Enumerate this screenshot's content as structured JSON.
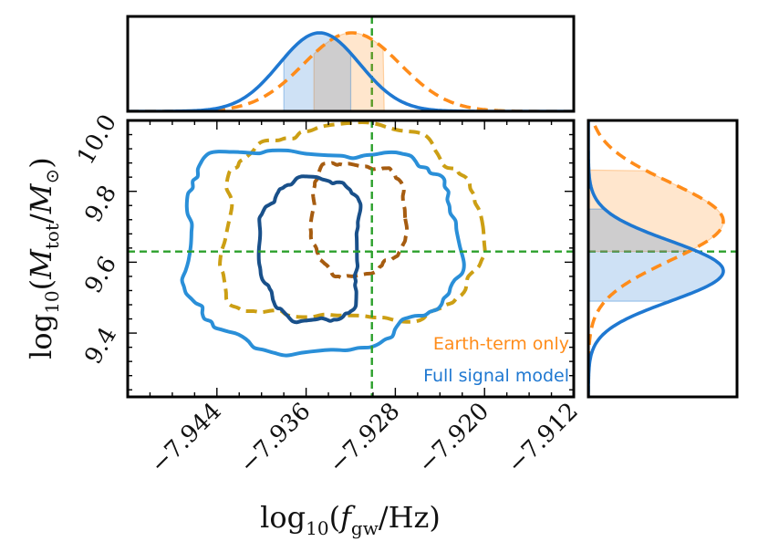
{
  "chart_data": {
    "type": "contour",
    "title": "",
    "xlabel": "log10(fgw/Hz)",
    "ylabel": "log10(Mtot/M⊙)",
    "xlim": [
      -7.952,
      -7.912
    ],
    "ylim": [
      9.22,
      10.0
    ],
    "x_ticks": [
      -7.944,
      -7.936,
      -7.928,
      -7.92,
      -7.912
    ],
    "x_tick_labels": [
      "−7.944",
      "−7.936",
      "−7.928",
      "−7.920",
      "−7.912"
    ],
    "y_ticks": [
      9.4,
      9.6,
      9.8,
      10.0
    ],
    "y_tick_labels": [
      "9.4",
      "9.6",
      "9.8",
      "10.0"
    ],
    "truth": {
      "x": -7.9301,
      "y": 9.63,
      "color": "#2ca02c"
    },
    "legend": [
      {
        "label": "Earth-term only",
        "color": "#ff8c1a"
      },
      {
        "label": "Full signal model",
        "color": "#1f78d1"
      }
    ],
    "series": [
      {
        "name": "Earth-term only",
        "line_style": "dashed",
        "contours": [
          {
            "level": "1σ",
            "color": "#a65c10",
            "center": [
              -7.9314,
              9.725
            ],
            "radius_x": 0.0042,
            "radius_y": 0.155
          },
          {
            "level": "2σ",
            "color": "#cc9f14",
            "center": [
              -7.9322,
              9.7
            ],
            "radius_x": 0.0115,
            "radius_y": 0.27
          }
        ],
        "x_marginal": {
          "mean": -7.9319,
          "sd": 0.0043,
          "ci_low": -7.9353,
          "ci_high": -7.929,
          "color": "#ff8c1a"
        },
        "y_marginal": {
          "mean": 9.715,
          "sd": 0.11,
          "ci_low": 9.63,
          "ci_high": 9.86,
          "color": "#ff8c1a"
        }
      },
      {
        "name": "Full signal model",
        "line_style": "solid",
        "contours": [
          {
            "level": "1σ",
            "color": "#19508a",
            "center": [
              -7.9355,
              9.635
            ],
            "radius_x": 0.0044,
            "radius_y": 0.2
          },
          {
            "level": "2σ",
            "color": "#2a8fd8",
            "center": [
              -7.935,
              9.645
            ],
            "radius_x": 0.0122,
            "radius_y": 0.28
          }
        ],
        "x_marginal": {
          "mean": -7.9348,
          "sd": 0.0036,
          "ci_low": -7.938,
          "ci_high": -7.932,
          "color": "#1f78d1"
        },
        "y_marginal": {
          "mean": 9.575,
          "sd": 0.085,
          "ci_low": 9.49,
          "ci_high": 9.75,
          "color": "#1f78d1"
        }
      }
    ]
  }
}
